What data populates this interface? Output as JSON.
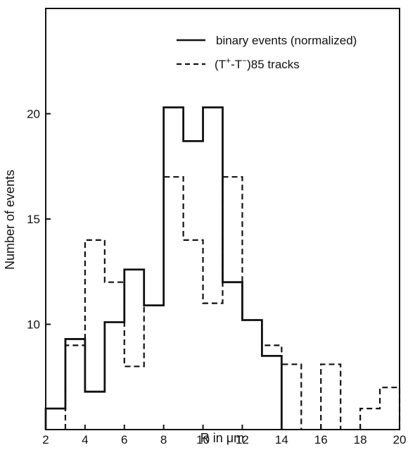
{
  "chart_data": {
    "type": "histogram",
    "title": "",
    "xlabel": "R in μm",
    "ylabel": "Number of events",
    "xlim": [
      2,
      20
    ],
    "ylim": [
      5,
      25
    ],
    "x_ticks": [
      2,
      4,
      6,
      8,
      10,
      12,
      14,
      16,
      18,
      20
    ],
    "y_ticks": [
      10,
      15,
      20
    ],
    "bin_edges": [
      2,
      3,
      4,
      5,
      6,
      7,
      8,
      9,
      10,
      11,
      12,
      13,
      14,
      15,
      16,
      17,
      18,
      19,
      20
    ],
    "grid": false,
    "legend_position": "top-right",
    "legend": {
      "solid_label": "binary events (normalized)",
      "dashed_label_suffix": "85 tracks",
      "dashed_label_parts": {
        "open": "(T",
        "sup1": "+",
        "mid": "-T",
        "sup2": "−",
        "close": ")"
      }
    },
    "series": [
      {
        "name": "binary events (normalized)",
        "line_style": "solid",
        "values": [
          6,
          9.3,
          6.8,
          10.1,
          12.6,
          10.9,
          20.3,
          18.7,
          20.3,
          12,
          10.2,
          8.5,
          null,
          null,
          null,
          null,
          null,
          null
        ]
      },
      {
        "name": "(T+-T−)85 tracks",
        "line_style": "dashed",
        "values": [
          null,
          9,
          14,
          12,
          8,
          10.9,
          17,
          14,
          11,
          17,
          10.2,
          9,
          8.1,
          null,
          8.1,
          null,
          6,
          7
        ]
      }
    ]
  }
}
